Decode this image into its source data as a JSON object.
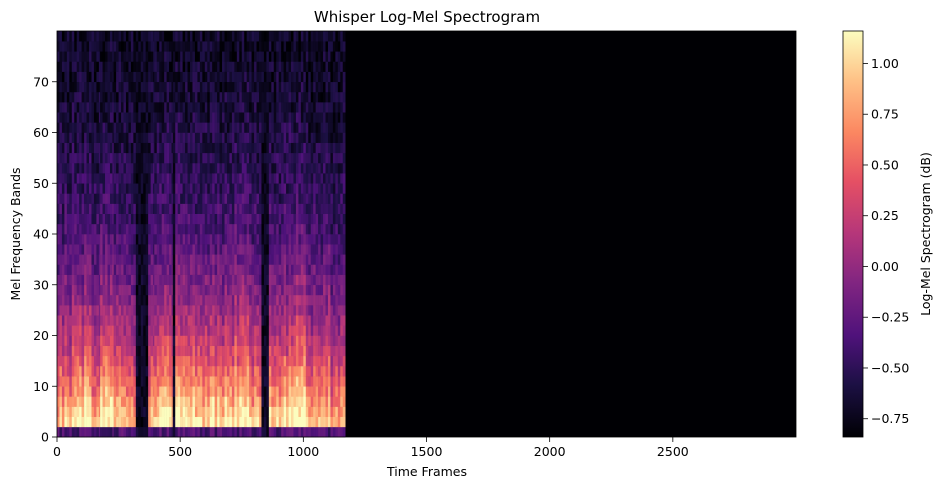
{
  "chart_data": {
    "type": "heatmap",
    "title": "Whisper Log-Mel Spectrogram",
    "xlabel": "Time Frames",
    "ylabel": "Mel Frequency Bands",
    "xlim": [
      0,
      3000
    ],
    "ylim": [
      0,
      80
    ],
    "x_ticks": [
      "0",
      "500",
      "1000",
      "1500",
      "2000",
      "2500"
    ],
    "y_ticks": [
      "0",
      "10",
      "20",
      "30",
      "40",
      "50",
      "60",
      "70"
    ],
    "colormap": "magma",
    "colorbar": {
      "label": "Log-Mel Spectrogram (dB)",
      "range": [
        -0.84,
        1.16
      ],
      "ticks": [
        "1.00",
        "0.75",
        "0.50",
        "0.25",
        "0.00",
        "−0.25",
        "−0.50",
        "−0.75"
      ]
    },
    "speech_end_frame": 1170,
    "silence_value": -0.84,
    "bursts": [
      {
        "start": 0,
        "end": 80,
        "amp": 0.9
      },
      {
        "start": 80,
        "end": 100,
        "amp": 1.0
      },
      {
        "start": 100,
        "end": 140,
        "amp": 1.1
      },
      {
        "start": 140,
        "end": 175,
        "amp": 0.7
      },
      {
        "start": 175,
        "end": 230,
        "amp": 1.05
      },
      {
        "start": 230,
        "end": 280,
        "amp": 0.9
      },
      {
        "start": 280,
        "end": 320,
        "amp": 0.75
      },
      {
        "start": 320,
        "end": 370,
        "amp": 0.05
      },
      {
        "start": 370,
        "end": 395,
        "amp": 0.85
      },
      {
        "start": 395,
        "end": 470,
        "amp": 1.05
      },
      {
        "start": 470,
        "end": 480,
        "amp": 0.1
      },
      {
        "start": 480,
        "end": 560,
        "amp": 1.1
      },
      {
        "start": 560,
        "end": 620,
        "amp": 0.95
      },
      {
        "start": 620,
        "end": 700,
        "amp": 1.0
      },
      {
        "start": 700,
        "end": 780,
        "amp": 1.1
      },
      {
        "start": 780,
        "end": 830,
        "amp": 0.9
      },
      {
        "start": 830,
        "end": 860,
        "amp": 0.2
      },
      {
        "start": 860,
        "end": 940,
        "amp": 1.05
      },
      {
        "start": 940,
        "end": 1010,
        "amp": 1.15
      },
      {
        "start": 1010,
        "end": 1060,
        "amp": 0.8
      },
      {
        "start": 1060,
        "end": 1110,
        "amp": 0.95
      },
      {
        "start": 1110,
        "end": 1170,
        "amp": 0.7
      }
    ]
  }
}
